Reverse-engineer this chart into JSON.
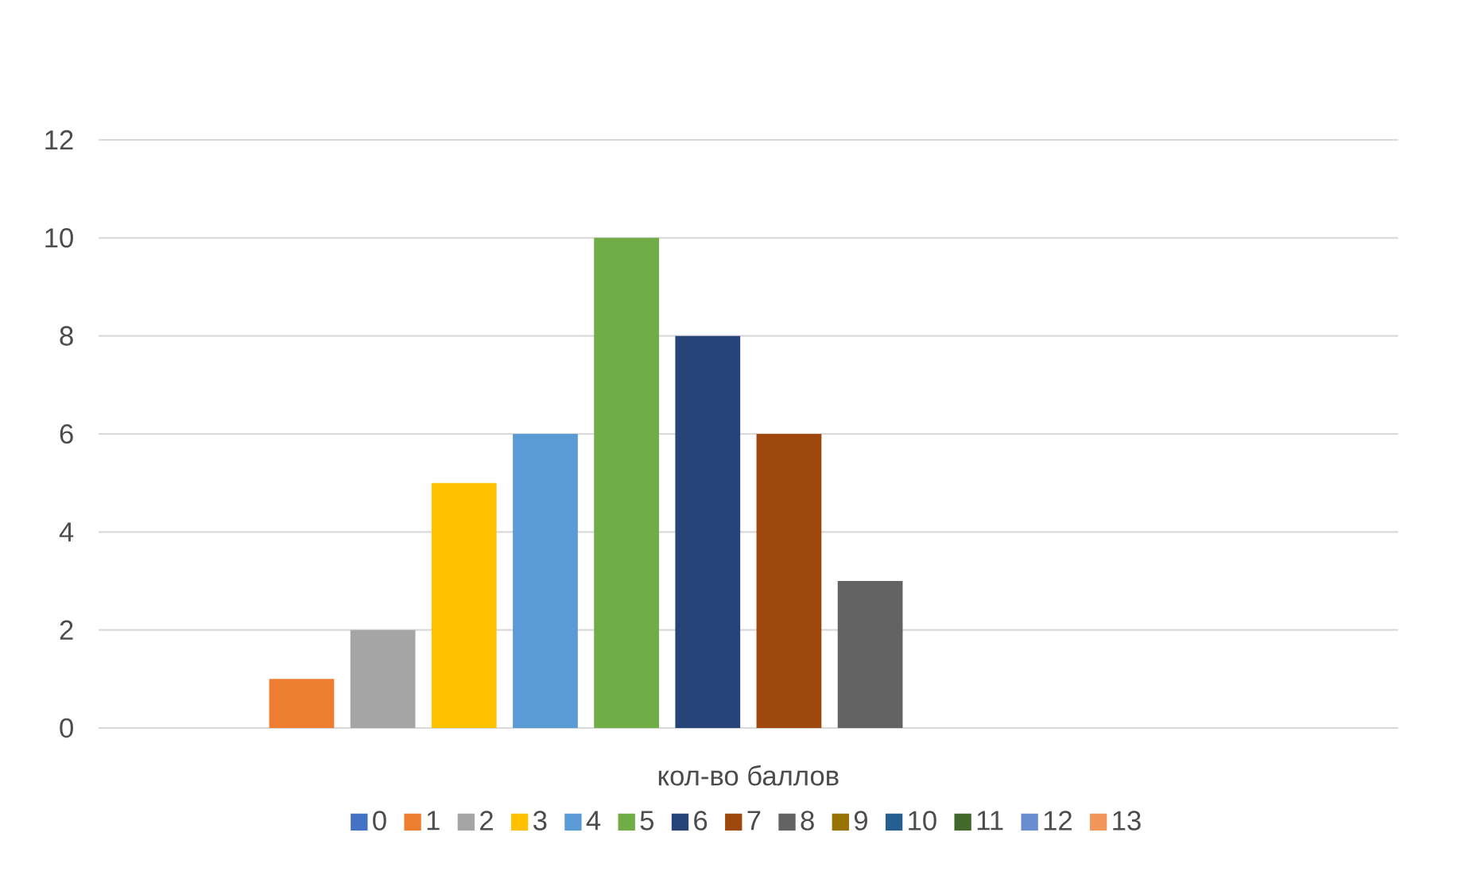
{
  "chart_data": {
    "type": "bar",
    "categories": [
      "кол-во баллов"
    ],
    "series": [
      {
        "name": "0",
        "color": "#4472c4",
        "values": [
          0
        ]
      },
      {
        "name": "1",
        "color": "#ed7d31",
        "values": [
          1
        ]
      },
      {
        "name": "2",
        "color": "#a5a5a5",
        "values": [
          2
        ]
      },
      {
        "name": "3",
        "color": "#ffc000",
        "values": [
          5
        ]
      },
      {
        "name": "4",
        "color": "#5b9bd5",
        "values": [
          6
        ]
      },
      {
        "name": "5",
        "color": "#70ad47",
        "values": [
          10
        ]
      },
      {
        "name": "6",
        "color": "#264478",
        "values": [
          8
        ]
      },
      {
        "name": "7",
        "color": "#9e480e",
        "values": [
          6
        ]
      },
      {
        "name": "8",
        "color": "#636363",
        "values": [
          3
        ]
      },
      {
        "name": "9",
        "color": "#997300",
        "values": [
          0
        ]
      },
      {
        "name": "10",
        "color": "#255e91",
        "values": [
          0
        ]
      },
      {
        "name": "11",
        "color": "#43682b",
        "values": [
          0
        ]
      },
      {
        "name": "12",
        "color": "#698ed0",
        "values": [
          0
        ]
      },
      {
        "name": "13",
        "color": "#f1975a",
        "values": [
          0
        ]
      }
    ],
    "ylim": [
      0,
      12
    ],
    "yticks": [
      0,
      2,
      4,
      6,
      8,
      10,
      12
    ],
    "grid": "y",
    "legend": "bottom"
  }
}
